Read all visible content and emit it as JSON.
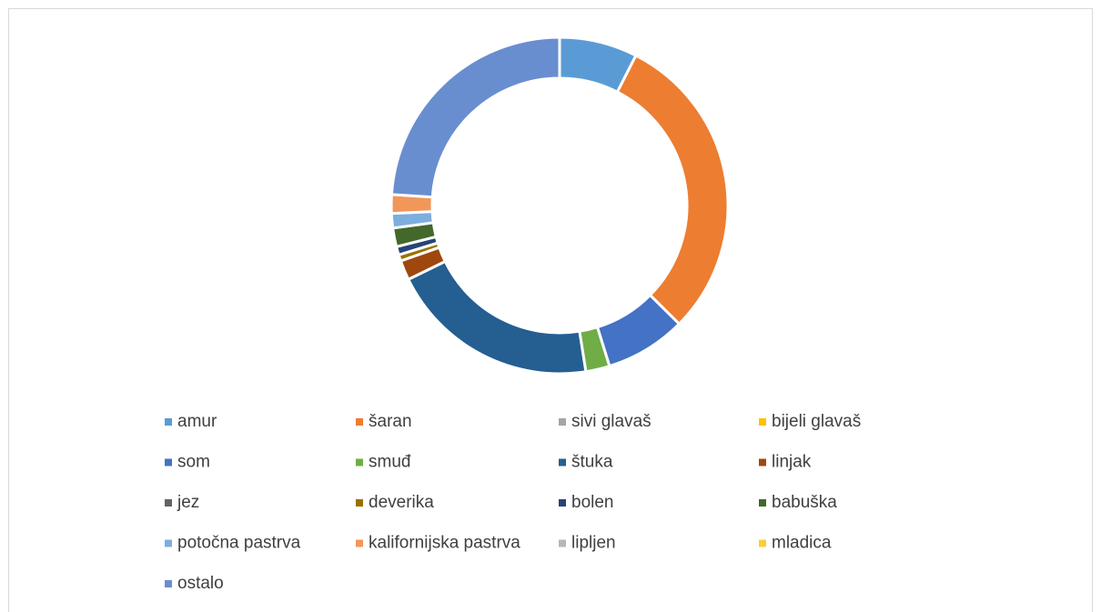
{
  "chart_data": {
    "type": "donut",
    "categories": [
      "amur",
      "šaran",
      "sivi glavaš",
      "bijeli glavaš",
      "som",
      "smuđ",
      "štuka",
      "linjak",
      "jez",
      "deverika",
      "bolen",
      "babuška",
      "potočna pastrva",
      "kalifornijska pastrva",
      "lipljen",
      "mladica",
      "ostalo"
    ],
    "values": [
      7.5,
      30,
      0,
      0,
      7.8,
      2.3,
      20.3,
      1.9,
      0,
      0.6,
      0.8,
      1.8,
      1.4,
      1.8,
      0,
      0,
      24
    ],
    "colors": [
      "#5b9bd5",
      "#ed7d31",
      "#a5a5a5",
      "#ffc000",
      "#4472c4",
      "#70ad47",
      "#255e91",
      "#9e480e",
      "#636363",
      "#997300",
      "#264478",
      "#43682b",
      "#7cafdd",
      "#f1975a",
      "#b7b7b7",
      "#ffcd33",
      "#698ed0"
    ],
    "legend": "bottom"
  }
}
